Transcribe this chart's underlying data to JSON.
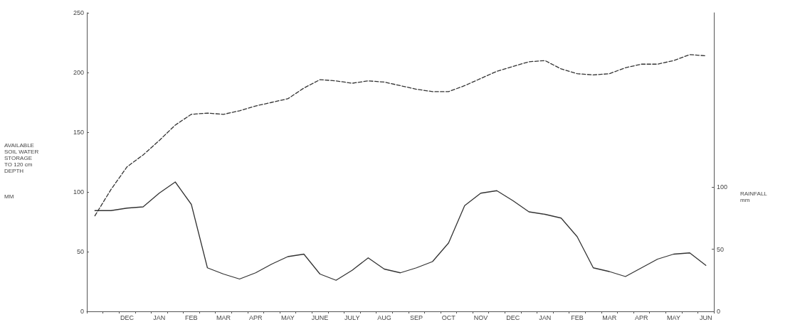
{
  "chart_data": {
    "type": "line",
    "ylabel": "AVAILABLE\nSOIL WATER\nSTORAGE\nTO 120 cm\nDEPTH\n\n\n\nMM",
    "y2label": "RAINFALL\nmm",
    "categories": [
      null,
      null,
      "DEC",
      null,
      "JAN",
      null,
      "FEB",
      null,
      "MAR",
      null,
      "APR",
      null,
      "MAY",
      null,
      "JUNE",
      null,
      "JULY",
      null,
      "AUG",
      null,
      "SEP",
      null,
      "OCT",
      null,
      "NOV",
      null,
      "DEC",
      null,
      "JAN",
      null,
      "FEB",
      null,
      "MAR",
      null,
      "APR",
      null,
      "MAY",
      null,
      "JUN"
    ],
    "ylim": [
      0,
      250
    ],
    "yticks": [
      0,
      50,
      100,
      150,
      200,
      250
    ],
    "y2lim": [
      0,
      240
    ],
    "y2ticks": [
      0,
      50,
      100
    ],
    "marker": "none",
    "grid": false,
    "series": [
      {
        "color": "#333333",
        "line_style": "dashed",
        "values": [
          80,
          102,
          121,
          131,
          143,
          156,
          165,
          166,
          165,
          168,
          172,
          175,
          178,
          187,
          194,
          193,
          191,
          193,
          192,
          189,
          186,
          184,
          184,
          189,
          195,
          201,
          205,
          209,
          210,
          203,
          199,
          198,
          199,
          204,
          207,
          207,
          210,
          215,
          214
        ]
      },
      {
        "color": "#333333",
        "line_style": "solid",
        "axis": "y2",
        "values": [
          81,
          81,
          83,
          84,
          95,
          104,
          86,
          35,
          30,
          26,
          31,
          38,
          44,
          46,
          30,
          25,
          33,
          43,
          34,
          31,
          35,
          40,
          55,
          85,
          95,
          97,
          89,
          80,
          78,
          75,
          60,
          35,
          32,
          28,
          35,
          42,
          46,
          47,
          37
        ]
      }
    ]
  }
}
